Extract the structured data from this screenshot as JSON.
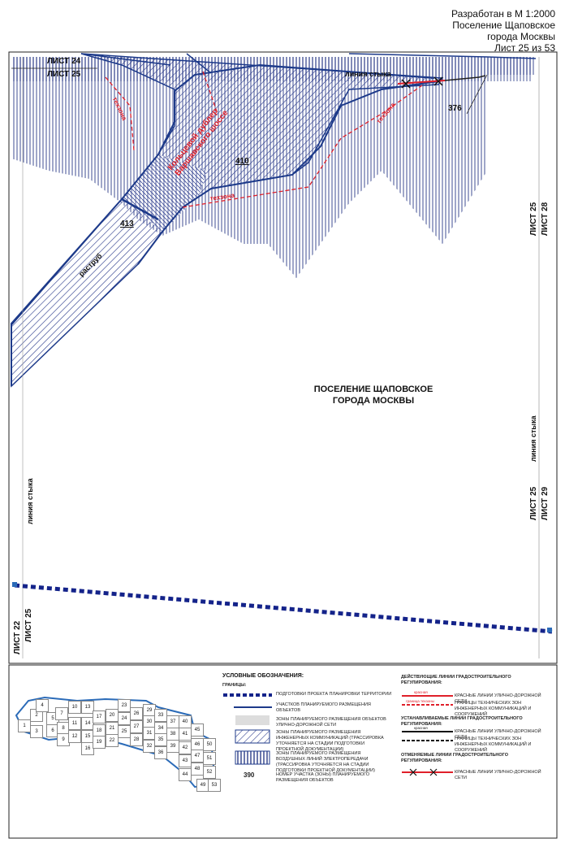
{
  "header": {
    "line1": "Разработан в М 1:2000",
    "line2": "Поселение Щаповское",
    "line3": "города Москвы",
    "line4": "Лист 25 из 53"
  },
  "sheet_labels": {
    "list24": "ЛИСТ 24",
    "list25_top": "ЛИСТ 25",
    "list25_r1": "ЛИСТ 25",
    "list28": "ЛИСТ 28",
    "list25_r2": "ЛИСТ 25",
    "list29": "ЛИСТ 29",
    "list22": "ЛИСТ 22",
    "list25_l": "ЛИСТ 25",
    "join_top": "линия стыка",
    "join_right": "линия стыка",
    "join_left": "линия стыка"
  },
  "map": {
    "settlement_l1": "ПОСЕЛЕНИЕ ЩАПОВСКОЕ",
    "settlement_l2": "ГОРОДА МОСКВЫ",
    "parcel_410": "410",
    "parcel_413": "413",
    "parcel_376": "376",
    "road_label": "Кольцевой дублер Варшавского шоссе",
    "raztrub": "раструб",
    "tech1": "техзона",
    "tech2": "техзона",
    "tech3": "техзона"
  },
  "legend": {
    "title": "УСЛОВНЫЕ ОБОЗНАЧЕНИЯ:",
    "borders": "ГРАНИЦЫ:",
    "item1": "ПОДГОТОВКИ ПРОЕКТА ПЛАНИРОВКИ ТЕРРИТОРИИ",
    "item2": "УЧАСТКОВ ПЛАНИРУЕМОГО РАЗМЕЩЕНИЯ ОБЪЕКТОВ",
    "item3": "ЗОНЫ ПЛАНИРУЕМОГО РАЗМЕЩЕНИЯ ОБЪЕКТОВ УЛИЧНО-ДОРОЖНОЙ СЕТИ",
    "item4": "ЗОНЫ ПЛАНИРУЕМОГО РАЗМЕЩЕНИЯ ИНЖЕНЕРНЫХ КОММУНИКАЦИЙ (ТРАССИРОВКА УТОЧНЯЕТСЯ НА СТАДИИ ПОДГОТОВКИ ПРОЕКТНОЙ ДОКУМЕНТАЦИИ)",
    "item5": "ЗОНЫ ПЛАНИРУЕМОГО РАЗМЕЩЕНИЯ ВОЗДУШНЫХ ЛИНИЙ ЭЛЕКТРОПЕРЕДАЧИ (ТРАССИРОВКА УТОЧНЯЕТСЯ НА СТАДИИ ПОДГОТОВКИ ПРОЕКТНОЙ ДОКУМЕНТАЦИИ)",
    "num": "390",
    "item6": "НОМЕР УЧАСТКА (ЗОНЫ) ПЛАНИРУЕМОГО РАЗМЕЩЕНИЯ ОБЪЕКТОВ",
    "existing": "ДЕЙСТВУЮЩИЕ ЛИНИИ ГРАДОСТРОИТЕЛЬНОГО РЕГУЛИРОВАНИЯ:",
    "r1": "КРАСНЫЕ ЛИНИИ УЛИЧНО-ДОРОЖНОЙ СЕТИ",
    "r2": "ГРАНИЦЫ ТЕХНИЧЕСКИХ ЗОН ИНЖЕНЕРНЫХ КОММУНИКАЦИЙ И СООРУЖЕНИЙ",
    "established": "УСТАНАВЛИВАЕМЫЕ ЛИНИИ ГРАДОСТРОИТЕЛЬНОГО РЕГУЛИРОВАНИЯ:",
    "r3": "КРАСНЫЕ ЛИНИИ УЛИЧНО-ДОРОЖНОЙ СЕТИ",
    "r4": "ГРАНИЦЫ ТЕХНИЧЕСКИХ ЗОН ИНЖЕНЕРНЫХ КОММУНИКАЦИЙ И СООРУЖЕНИЙ",
    "cancelled": "ОТМЕНЯЕМЫЕ ЛИНИИ ГРАДОСТРОИТЕЛЬНОГО РЕГУЛИРОВАНИЯ:",
    "r5": "КРАСНЫЕ ЛИНИИ УЛИЧНО-ДОРОЖНОЙ СЕТИ",
    "tiny_red": "красная",
    "tiny_red2": "граница техзоны",
    "tiny_black": "красная"
  },
  "index_map": {
    "cells": [
      "1",
      "2",
      "3",
      "4",
      "5",
      "6",
      "7",
      "8",
      "9",
      "10",
      "11",
      "12",
      "13",
      "14",
      "15",
      "16",
      "17",
      "18",
      "19",
      "20",
      "21",
      "22",
      "23",
      "24",
      "25",
      "26",
      "27",
      "28",
      "29",
      "30",
      "31",
      "32",
      "33",
      "34",
      "35",
      "36",
      "37",
      "38",
      "39",
      "40",
      "41",
      "42",
      "43",
      "44",
      "45",
      "46",
      "47",
      "48",
      "49",
      "50",
      "51",
      "52",
      "53"
    ]
  },
  "colors": {
    "blue": "#1d3a8a",
    "dark_blue": "#14238a",
    "red": "#e0202a",
    "hatch": "#2a3a8c"
  }
}
